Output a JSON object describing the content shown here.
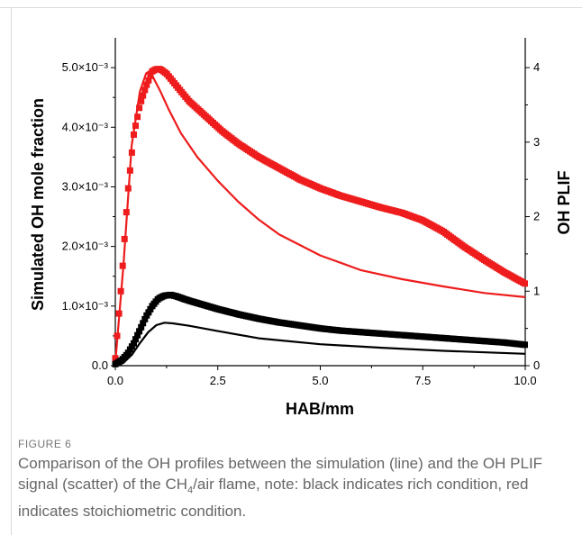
{
  "figure": {
    "label": "FIGURE 6",
    "caption_part1": "Comparison of the OH profiles between the simulation (line) and the OH PLIF signal (scatter) of the CH",
    "caption_sub": "4",
    "caption_part2": "/air flame, note: black indicates rich condition, red indicates stoichiometric condition."
  },
  "colors": {
    "rich": "#000000",
    "stoich": "#ee1c1c"
  },
  "chart_data": {
    "type": "line",
    "xlabel": "HAB/mm",
    "ylabel_left": "Simulated OH mole fraction",
    "ylabel_right": "OH PLIF",
    "xlim": [
      0,
      10
    ],
    "ylim_left": [
      0,
      0.0055
    ],
    "ylim_right": [
      0,
      4.4
    ],
    "x_ticks": [
      "0.0",
      "2.5",
      "5.0",
      "7.5",
      "10.0"
    ],
    "y_left_ticks": [
      {
        "value": 0,
        "label": "0.0"
      },
      {
        "value": 0.001,
        "label": "1.0×10⁻³"
      },
      {
        "value": 0.002,
        "label": "2.0×10⁻³"
      },
      {
        "value": 0.003,
        "label": "3.0×10⁻³"
      },
      {
        "value": 0.004,
        "label": "4.0×10⁻³"
      },
      {
        "value": 0.005,
        "label": "5.0×10⁻³"
      }
    ],
    "y_right_ticks": [
      0,
      1,
      2,
      3,
      4
    ],
    "series": [
      {
        "kind": "line",
        "axis": "left",
        "color": "#ee1c1c",
        "condition": "stoichiometric",
        "x": [
          0.0,
          0.2,
          0.4,
          0.6,
          0.75,
          0.85,
          0.95,
          1.1,
          1.3,
          1.6,
          2.0,
          2.5,
          3.0,
          3.5,
          4.0,
          5.0,
          6.0,
          7.0,
          8.0,
          9.0,
          10.0
        ],
        "y": [
          5e-05,
          0.0017,
          0.0037,
          0.0046,
          0.0049,
          0.00495,
          0.0048,
          0.0046,
          0.0043,
          0.0039,
          0.0035,
          0.0031,
          0.00275,
          0.00245,
          0.0022,
          0.00185,
          0.0016,
          0.00145,
          0.00133,
          0.00122,
          0.00115
        ]
      },
      {
        "kind": "line",
        "axis": "left",
        "color": "#000000",
        "condition": "rich",
        "x": [
          0.0,
          0.2,
          0.4,
          0.6,
          0.8,
          1.0,
          1.2,
          1.4,
          1.8,
          2.5,
          3.5,
          5.0,
          6.5,
          8.0,
          10.0
        ],
        "y": [
          0.0,
          5e-05,
          0.00018,
          0.00038,
          0.00056,
          0.00068,
          0.00072,
          0.00071,
          0.00067,
          0.00058,
          0.00046,
          0.00036,
          0.0003,
          0.00025,
          0.0002
        ]
      },
      {
        "kind": "scatter",
        "axis": "right",
        "color": "#ee1c1c",
        "condition": "stoichiometric",
        "x": [
          0.0,
          0.15,
          0.3,
          0.45,
          0.6,
          0.75,
          0.9,
          1.0,
          1.1,
          1.25,
          1.5,
          1.8,
          2.2,
          2.6,
          3.0,
          3.5,
          4.0,
          4.5,
          5.0,
          5.5,
          6.0,
          6.5,
          7.0,
          7.5,
          8.0,
          8.5,
          9.0,
          9.5,
          10.0
        ],
        "y": [
          0.1,
          1.1,
          2.3,
          3.1,
          3.5,
          3.75,
          3.95,
          3.98,
          3.98,
          3.92,
          3.75,
          3.55,
          3.35,
          3.15,
          2.98,
          2.8,
          2.65,
          2.5,
          2.38,
          2.28,
          2.2,
          2.12,
          2.05,
          1.95,
          1.8,
          1.6,
          1.42,
          1.25,
          1.1
        ]
      },
      {
        "kind": "scatter",
        "axis": "right",
        "color": "#000000",
        "condition": "rich",
        "x": [
          0.0,
          0.15,
          0.3,
          0.45,
          0.6,
          0.75,
          0.9,
          1.05,
          1.2,
          1.35,
          1.5,
          1.7,
          2.0,
          2.5,
          3.0,
          3.5,
          4.0,
          4.5,
          5.0,
          5.5,
          6.0,
          6.5,
          7.0,
          7.5,
          8.0,
          8.5,
          9.0,
          9.5,
          10.0
        ],
        "y": [
          0.02,
          0.07,
          0.16,
          0.3,
          0.48,
          0.66,
          0.8,
          0.9,
          0.94,
          0.95,
          0.93,
          0.89,
          0.84,
          0.76,
          0.69,
          0.63,
          0.58,
          0.54,
          0.5,
          0.47,
          0.45,
          0.43,
          0.41,
          0.39,
          0.37,
          0.35,
          0.33,
          0.31,
          0.28
        ]
      }
    ]
  }
}
